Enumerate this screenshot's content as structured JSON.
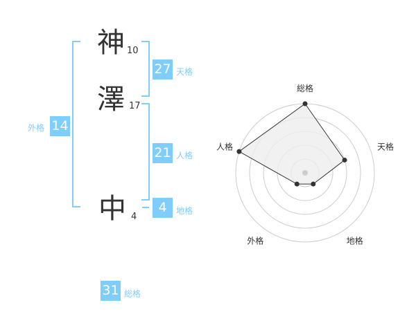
{
  "name": {
    "chars": [
      {
        "char": "神",
        "strokes": "10"
      },
      {
        "char": "澤",
        "strokes": "17"
      },
      {
        "char": "中",
        "strokes": "4"
      }
    ]
  },
  "fortunes": {
    "tenkaku": {
      "label": "天格",
      "value": "27"
    },
    "jinkaku": {
      "label": "人格",
      "value": "21"
    },
    "chikaku": {
      "label": "地格",
      "value": "4"
    },
    "gaikaku": {
      "label": "外格",
      "value": "14"
    },
    "soukaku": {
      "label": "総格",
      "value": "31"
    }
  },
  "chart_data": {
    "type": "radar",
    "axes": [
      "総格",
      "天格",
      "地格",
      "外格",
      "人格"
    ],
    "values": [
      5,
      3,
      1,
      1,
      5
    ],
    "range": [
      0,
      5
    ],
    "rings": 5,
    "colors": {
      "fill": "#eeeeee",
      "line": "#333333",
      "ring": "#cccccc",
      "accent": "#7fcdfa"
    }
  }
}
